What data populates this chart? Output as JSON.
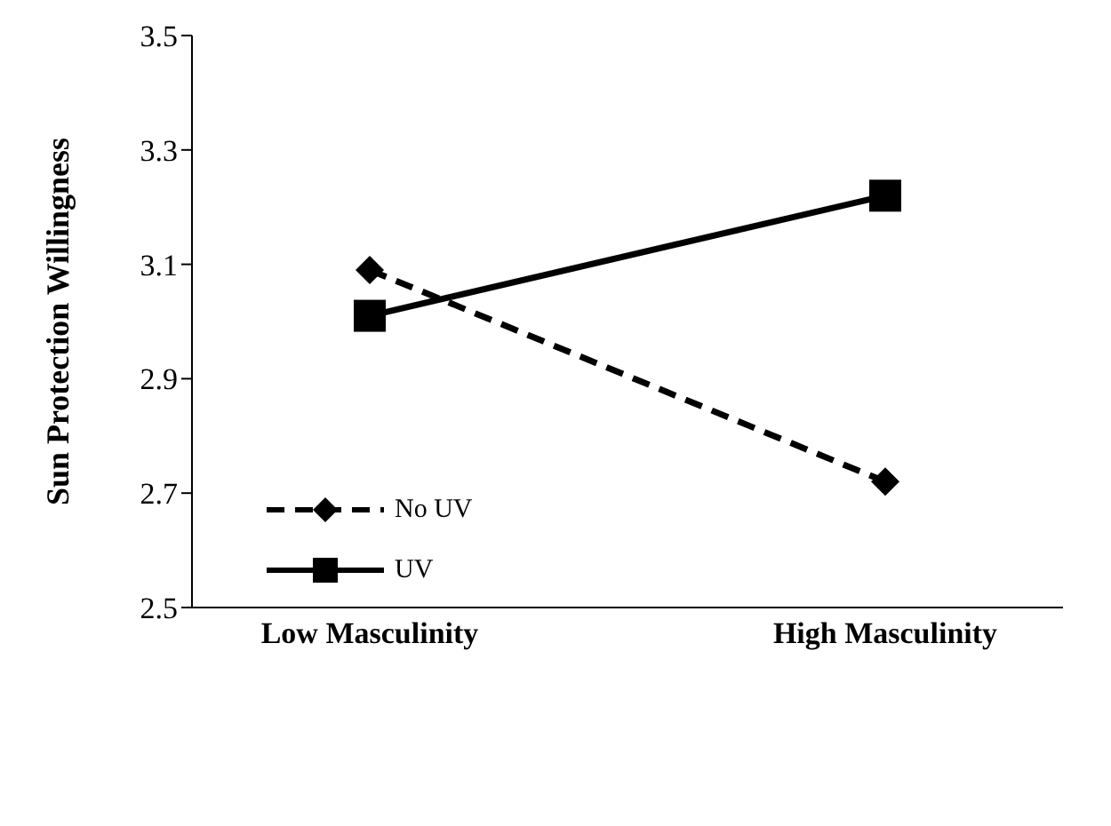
{
  "chart_data": {
    "type": "line",
    "ylabel": "Sun Protection Willingness",
    "categories": [
      "Low Masculinity",
      "High Masculinity"
    ],
    "series": [
      {
        "name": "No UV",
        "color": "#000000",
        "values": [
          3.09,
          2.72
        ],
        "marker": "diamond",
        "line_style": "dashed"
      },
      {
        "name": "UV",
        "color": "#000000",
        "values": [
          3.01,
          3.22
        ],
        "marker": "square",
        "line_style": "solid"
      }
    ],
    "ylim": [
      2.5,
      3.5
    ],
    "yticks": [
      2.5,
      2.7,
      2.9,
      3.1,
      3.3,
      3.5
    ],
    "grid": false,
    "legend": "left"
  }
}
